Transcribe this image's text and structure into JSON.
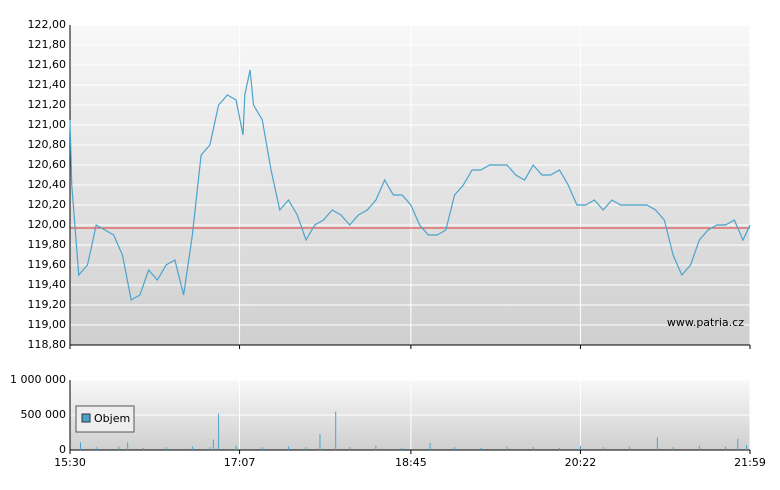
{
  "chart_data": [
    {
      "type": "line",
      "x": [
        "15:30",
        "15:31",
        "15:35",
        "15:40",
        "15:45",
        "15:50",
        "15:55",
        "16:00",
        "16:05",
        "16:10",
        "16:15",
        "16:20",
        "16:25",
        "16:30",
        "16:35",
        "16:40",
        "16:45",
        "16:50",
        "16:55",
        "17:00",
        "17:05",
        "17:09",
        "17:10",
        "17:13",
        "17:15",
        "17:20",
        "17:25",
        "17:30",
        "17:35",
        "17:40",
        "17:45",
        "17:50",
        "17:55",
        "18:00",
        "18:05",
        "18:10",
        "18:15",
        "18:20",
        "18:25",
        "18:30",
        "18:35",
        "18:40",
        "18:45",
        "18:50",
        "18:55",
        "19:00",
        "19:05",
        "19:10",
        "19:15",
        "19:20",
        "19:25",
        "19:30",
        "19:35",
        "19:40",
        "19:45",
        "19:50",
        "19:55",
        "20:00",
        "20:05",
        "20:10",
        "20:15",
        "20:20",
        "20:25",
        "20:30",
        "20:35",
        "20:40",
        "20:45",
        "20:50",
        "20:55",
        "21:00",
        "21:05",
        "21:10",
        "21:15",
        "21:20",
        "21:25",
        "21:30",
        "21:35",
        "21:40",
        "21:45",
        "21:50",
        "21:55",
        "21:59"
      ],
      "series": [
        {
          "color": "#4ba3cc",
          "values": [
            121.05,
            120.4,
            119.5,
            119.6,
            120.0,
            119.95,
            119.9,
            119.7,
            119.25,
            119.3,
            119.55,
            119.45,
            119.6,
            119.65,
            119.3,
            119.9,
            120.7,
            120.8,
            121.2,
            121.3,
            121.25,
            120.9,
            121.3,
            121.55,
            121.2,
            121.05,
            120.55,
            120.15,
            120.25,
            120.1,
            119.85,
            120.0,
            120.05,
            120.15,
            120.1,
            120.0,
            120.1,
            120.15,
            120.25,
            120.45,
            120.3,
            120.3,
            120.2,
            120.0,
            119.9,
            119.9,
            119.95,
            120.3,
            120.4,
            120.55,
            120.55,
            120.6,
            120.6,
            120.6,
            120.5,
            120.45,
            120.6,
            120.5,
            120.5,
            120.55,
            120.4,
            120.2,
            120.2,
            120.25,
            120.15,
            120.25,
            120.2,
            120.2,
            120.2,
            120.2,
            120.15,
            120.05,
            119.7,
            119.5,
            119.6,
            119.85,
            119.95,
            120.0,
            120.0,
            120.05,
            119.85,
            120.0
          ]
        }
      ],
      "reference_line": {
        "value": 119.97,
        "color": "#e03030"
      },
      "xlim": [
        "15:30",
        "21:59"
      ],
      "xticks": [
        "15:30",
        "17:07",
        "18:45",
        "20:22",
        "21:59"
      ],
      "ylim": [
        118.8,
        122
      ],
      "yticks": [
        {
          "value": 118.8,
          "label": "118,80"
        },
        {
          "value": 119,
          "label": "119,00"
        },
        {
          "value": 119.2,
          "label": "119,20"
        },
        {
          "value": 119.4,
          "label": "119,40"
        },
        {
          "value": 119.6,
          "label": "119,60"
        },
        {
          "value": 119.8,
          "label": "119,80"
        },
        {
          "value": 120,
          "label": "120,00"
        },
        {
          "value": 120.2,
          "label": "120,20"
        },
        {
          "value": 120.4,
          "label": "120,40"
        },
        {
          "value": 120.6,
          "label": "120,60"
        },
        {
          "value": 120.8,
          "label": "120,80"
        },
        {
          "value": 121,
          "label": "121,00"
        },
        {
          "value": 121.2,
          "label": "121,20"
        },
        {
          "value": 121.4,
          "label": "121,40"
        },
        {
          "value": 121.6,
          "label": "121,60"
        },
        {
          "value": 121.8,
          "label": "121,80"
        },
        {
          "value": 122,
          "label": "122,00"
        }
      ],
      "grid": true,
      "annotation": "www.patria.cz"
    },
    {
      "type": "bar",
      "x": [
        "15:36",
        "15:45",
        "15:58",
        "16:03",
        "16:12",
        "16:25",
        "16:40",
        "16:50",
        "16:52",
        "16:55",
        "17:05",
        "17:20",
        "17:35",
        "17:45",
        "17:53",
        "18:02",
        "18:10",
        "18:25",
        "18:40",
        "18:56",
        "19:10",
        "19:25",
        "19:40",
        "19:55",
        "20:10",
        "20:22",
        "20:35",
        "20:50",
        "21:06",
        "21:15",
        "21:30",
        "21:45",
        "21:52",
        "21:57"
      ],
      "series": [
        {
          "name": "Objem",
          "color": "#4ba3cc",
          "values": [
            110000,
            40000,
            50000,
            110000,
            30000,
            40000,
            50000,
            40000,
            150000,
            520000,
            60000,
            40000,
            50000,
            40000,
            230000,
            550000,
            40000,
            60000,
            30000,
            100000,
            40000,
            30000,
            50000,
            40000,
            30000,
            60000,
            40000,
            50000,
            180000,
            40000,
            60000,
            50000,
            160000,
            70000
          ]
        }
      ],
      "xlim": [
        "15:30",
        "21:59"
      ],
      "xticks": [
        "15:30",
        "17:07",
        "18:45",
        "20:22",
        "21:59"
      ],
      "ylim": [
        0,
        1000000
      ],
      "yticks": [
        0,
        {
          "value": 500000,
          "label": "500 000"
        },
        {
          "value": 1000000,
          "label": "1 000 000"
        }
      ],
      "grid": true,
      "legend": "upper left"
    }
  ]
}
